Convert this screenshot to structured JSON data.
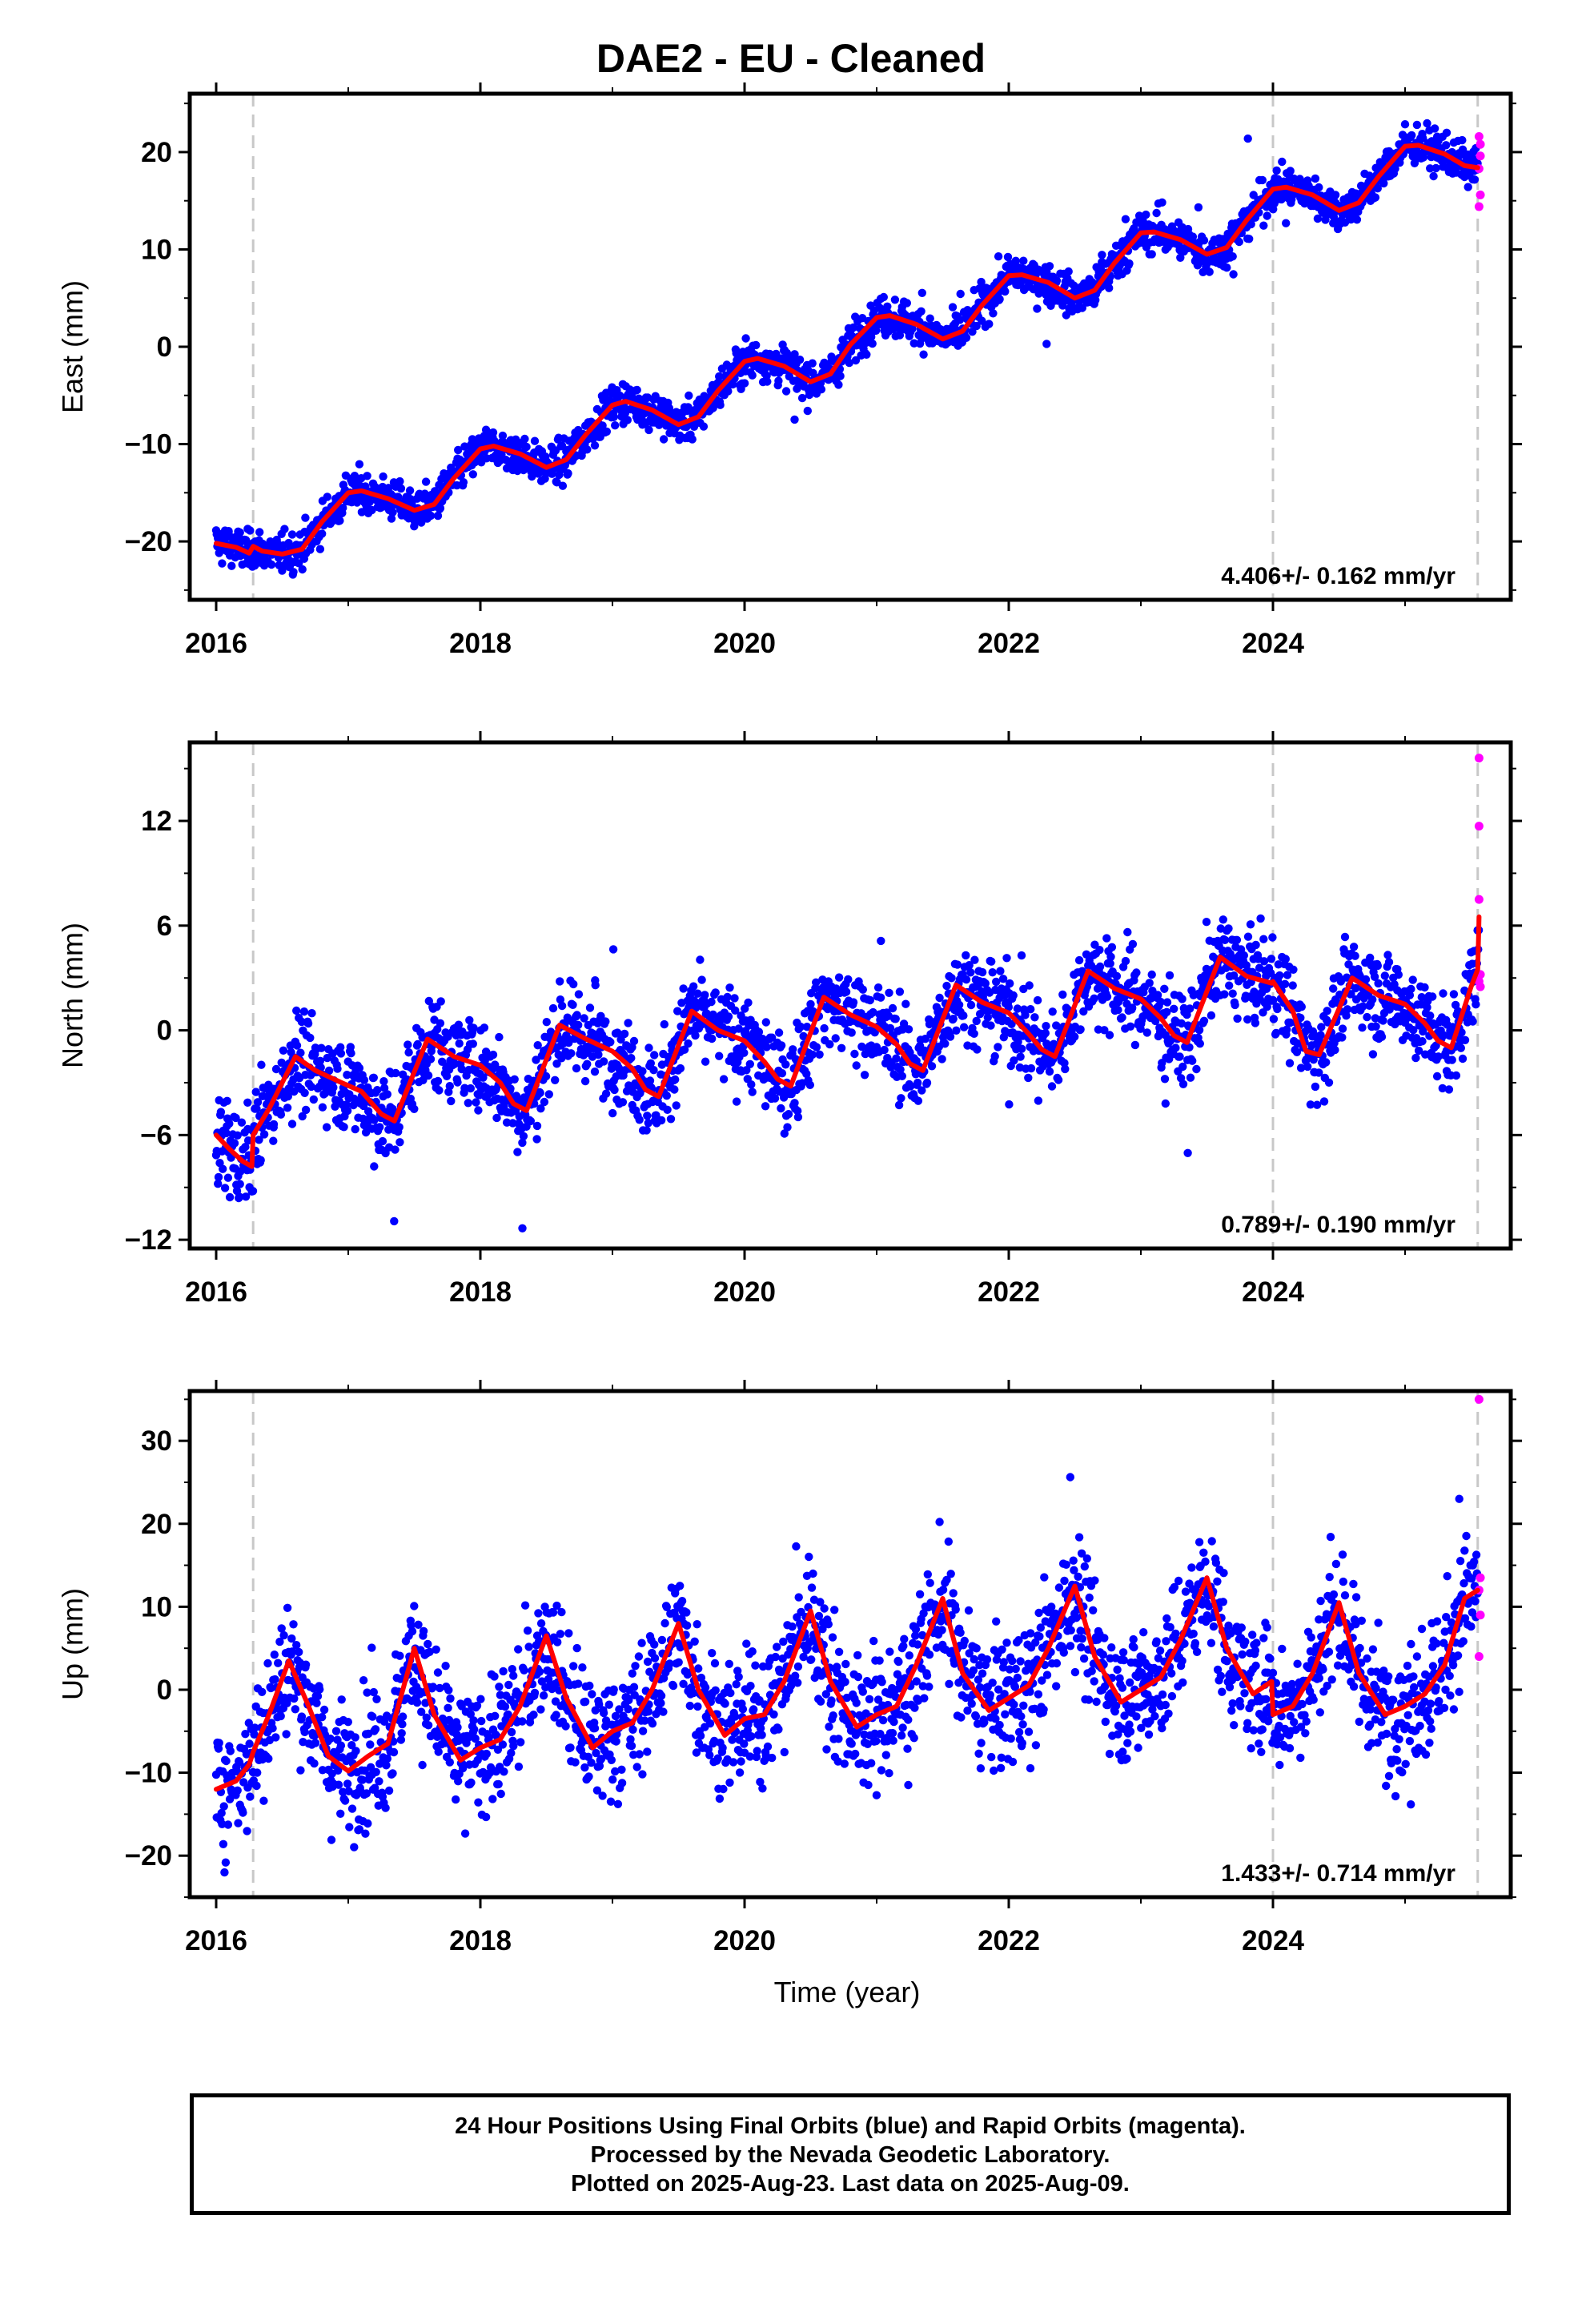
{
  "title": "DAE2  - EU - Cleaned",
  "footer": {
    "line1": "24 Hour Positions Using Final Orbits (blue) and Rapid Orbits (magenta).",
    "line2": "Processed by the Nevada Geodetic Laboratory.",
    "line3": "Plotted on 2025-Aug-23. Last data on 2025-Aug-09."
  },
  "colors": {
    "final_orbits": "#0000ff",
    "rapid_orbits": "#ff00ff",
    "model_fit": "#ff0000",
    "event_lines": "#c8c8c8"
  },
  "chart_data": [
    {
      "type": "scatter",
      "ylabel": "East (mm)",
      "xlim": [
        2015.8,
        2025.8
      ],
      "ylim": [
        -26,
        26
      ],
      "yticks": [
        -20,
        -10,
        0,
        10,
        20
      ],
      "xticks": [
        2016,
        2018,
        2020,
        2022,
        2024
      ],
      "event_lines_x": [
        2016.28,
        2024.0,
        2025.55
      ],
      "rate_label": "4.406+/- 0.162 mm/yr",
      "model": {
        "name": "model fit",
        "x": [
          2016.0,
          2016.15,
          2016.25,
          2016.28,
          2016.35,
          2016.5,
          2016.65,
          2016.8,
          2017.0,
          2017.1,
          2017.3,
          2017.5,
          2017.65,
          2017.8,
          2018.0,
          2018.1,
          2018.3,
          2018.5,
          2018.65,
          2018.8,
          2019.0,
          2019.1,
          2019.3,
          2019.5,
          2019.65,
          2019.8,
          2020.0,
          2020.1,
          2020.3,
          2020.5,
          2020.65,
          2020.8,
          2021.0,
          2021.1,
          2021.3,
          2021.5,
          2021.65,
          2021.8,
          2022.0,
          2022.1,
          2022.3,
          2022.5,
          2022.65,
          2022.8,
          2023.0,
          2023.1,
          2023.3,
          2023.5,
          2023.65,
          2023.8,
          2024.0,
          2024.1,
          2024.3,
          2024.5,
          2024.65,
          2024.8,
          2025.0,
          2025.1,
          2025.3,
          2025.45,
          2025.55
        ],
        "y": [
          -20.2,
          -20.6,
          -21.2,
          -20.5,
          -21.0,
          -21.3,
          -20.8,
          -18.0,
          -15.0,
          -14.8,
          -15.6,
          -16.8,
          -16.2,
          -13.5,
          -10.5,
          -10.2,
          -11.0,
          -12.4,
          -11.6,
          -9.0,
          -6.0,
          -5.6,
          -6.5,
          -8.0,
          -7.2,
          -4.5,
          -1.5,
          -1.2,
          -2.0,
          -3.6,
          -2.8,
          0.2,
          3.0,
          3.2,
          2.3,
          0.8,
          1.6,
          4.3,
          7.3,
          7.4,
          6.6,
          5.0,
          5.8,
          8.6,
          11.7,
          11.8,
          11.0,
          9.5,
          10.2,
          13.0,
          16.2,
          16.4,
          15.6,
          14.0,
          14.8,
          17.5,
          20.6,
          20.7,
          19.8,
          18.6,
          18.4
        ]
      },
      "rapid": {
        "x": [
          2025.56,
          2025.57,
          2025.57,
          2025.56,
          2025.57,
          2025.56
        ],
        "y": [
          21.6,
          20.8,
          19.6,
          18.3,
          15.6,
          14.4
        ]
      }
    },
    {
      "type": "scatter",
      "ylabel": "North (mm)",
      "xlim": [
        2015.8,
        2025.8
      ],
      "ylim": [
        -12.5,
        16.5
      ],
      "yticks": [
        -12,
        -6,
        0,
        6,
        12
      ],
      "xticks": [
        2016,
        2018,
        2020,
        2022,
        2024
      ],
      "event_lines_x": [
        2016.28,
        2024.0,
        2025.55
      ],
      "rate_label": "0.789+/- 0.190 mm/yr",
      "model": {
        "name": "model fit",
        "x": [
          2016.0,
          2016.1,
          2016.2,
          2016.27,
          2016.28,
          2016.4,
          2016.6,
          2016.75,
          2016.95,
          2017.1,
          2017.25,
          2017.35,
          2017.6,
          2017.8,
          2018.0,
          2018.15,
          2018.25,
          2018.35,
          2018.6,
          2018.8,
          2019.0,
          2019.15,
          2019.25,
          2019.35,
          2019.6,
          2019.8,
          2020.0,
          2020.15,
          2020.25,
          2020.35,
          2020.6,
          2020.8,
          2021.0,
          2021.15,
          2021.25,
          2021.35,
          2021.6,
          2021.8,
          2022.0,
          2022.15,
          2022.25,
          2022.35,
          2022.6,
          2022.8,
          2023.0,
          2023.15,
          2023.25,
          2023.35,
          2023.6,
          2023.8,
          2023.99,
          2024.0,
          2024.15,
          2024.25,
          2024.35,
          2024.6,
          2024.8,
          2025.0,
          2025.15,
          2025.25,
          2025.35,
          2025.5,
          2025.55,
          2025.56
        ],
        "y": [
          -6.0,
          -6.8,
          -7.5,
          -7.8,
          -6.0,
          -4.5,
          -1.5,
          -2.3,
          -3.0,
          -3.5,
          -4.8,
          -5.2,
          -0.5,
          -1.5,
          -2.0,
          -3.0,
          -4.2,
          -4.6,
          0.3,
          -0.5,
          -1.2,
          -2.2,
          -3.4,
          -3.8,
          1.1,
          0.0,
          -0.6,
          -1.8,
          -2.8,
          -3.2,
          1.9,
          0.9,
          0.2,
          -0.8,
          -1.9,
          -2.3,
          2.6,
          1.6,
          1.0,
          -0.2,
          -1.1,
          -1.5,
          3.4,
          2.4,
          1.8,
          0.7,
          -0.3,
          -0.7,
          4.2,
          3.1,
          2.7,
          2.8,
          1.1,
          -1.2,
          -1.4,
          3.0,
          2.0,
          1.5,
          0.4,
          -0.6,
          -1.0,
          2.5,
          3.5,
          6.5
        ]
      },
      "rapid": {
        "x": [
          2025.56,
          2025.56,
          2025.56,
          2025.57,
          2025.56,
          2025.57
        ],
        "y": [
          15.6,
          11.7,
          7.5,
          3.2,
          2.8,
          2.5
        ]
      }
    },
    {
      "type": "scatter",
      "ylabel": "Up (mm)",
      "xlabel": "Time (year)",
      "xlim": [
        2015.8,
        2025.8
      ],
      "ylim": [
        -25,
        36
      ],
      "yticks": [
        -20,
        -10,
        0,
        10,
        20,
        30
      ],
      "xticks": [
        2016,
        2018,
        2020,
        2022,
        2024
      ],
      "event_lines_x": [
        2016.28,
        2024.0,
        2025.55
      ],
      "rate_label": "1.433+/- 0.714 mm/yr",
      "model": {
        "name": "model fit",
        "x": [
          2016.0,
          2016.15,
          2016.25,
          2016.28,
          2016.4,
          2016.55,
          2016.7,
          2016.85,
          2017.0,
          2017.15,
          2017.3,
          2017.5,
          2017.65,
          2017.85,
          2018.0,
          2018.15,
          2018.3,
          2018.5,
          2018.65,
          2018.85,
          2019.0,
          2019.15,
          2019.3,
          2019.5,
          2019.65,
          2019.85,
          2020.0,
          2020.15,
          2020.3,
          2020.5,
          2020.65,
          2020.85,
          2021.0,
          2021.15,
          2021.3,
          2021.5,
          2021.65,
          2021.85,
          2022.0,
          2022.15,
          2022.3,
          2022.5,
          2022.65,
          2022.85,
          2023.0,
          2023.15,
          2023.3,
          2023.5,
          2023.65,
          2023.85,
          2023.99,
          2024.0,
          2024.15,
          2024.3,
          2024.5,
          2024.65,
          2024.85,
          2025.0,
          2025.15,
          2025.3,
          2025.45,
          2025.55
        ],
        "y": [
          -12.0,
          -11.0,
          -9.0,
          -7.5,
          -3.0,
          3.5,
          -2.0,
          -8.0,
          -9.8,
          -8.0,
          -6.5,
          5.0,
          -3.0,
          -8.5,
          -7.0,
          -6.0,
          -2.0,
          6.5,
          -1.0,
          -7.0,
          -5.0,
          -4.0,
          0.0,
          8.0,
          0.0,
          -5.5,
          -3.5,
          -3.0,
          1.0,
          9.5,
          1.0,
          -4.5,
          -3.0,
          -2.0,
          3.0,
          11.0,
          2.0,
          -2.5,
          -1.0,
          0.5,
          5.0,
          12.5,
          4.0,
          -1.5,
          0.0,
          1.5,
          6.0,
          13.5,
          5.0,
          -0.5,
          1.0,
          -3.0,
          -2.0,
          2.0,
          10.5,
          2.0,
          -3.0,
          -2.0,
          -0.5,
          3.0,
          11.0,
          12.0
        ]
      },
      "rapid": {
        "x": [
          2025.56,
          2025.57,
          2025.56,
          2025.57,
          2025.56
        ],
        "y": [
          35.0,
          13.5,
          12.0,
          9.0,
          4.0
        ]
      }
    }
  ]
}
